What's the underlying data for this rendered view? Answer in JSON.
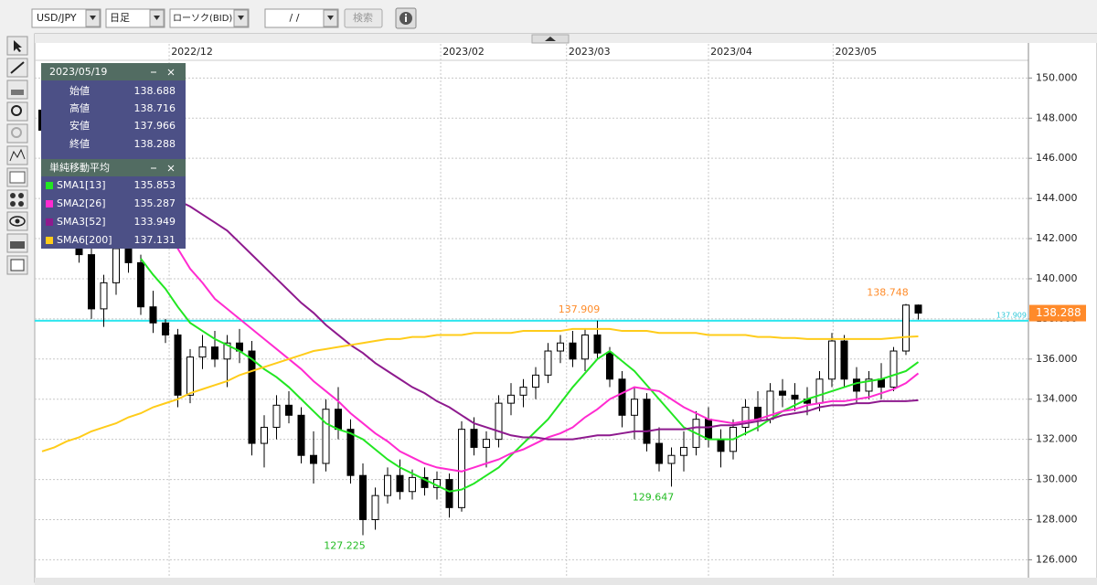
{
  "toolbar": {
    "symbol": "USD/JPY",
    "period": "日足",
    "chart_type": "ローソク(BID)",
    "date": "/ /",
    "search": "検索"
  },
  "info_panel": {
    "date": "2023/05/19",
    "ohlc_labels": [
      "始値",
      "高値",
      "安値",
      "終値"
    ],
    "sma_title": "単純移動平均"
  },
  "chart_data": {
    "type": "candlestick",
    "open": [
      148.4,
      147.4,
      146.0,
      144.5,
      141.2,
      138.5,
      139.8,
      141.5,
      140.8,
      138.6,
      137.8,
      137.2,
      134.2,
      136.1,
      136.6,
      136.0,
      136.8,
      136.4,
      131.8,
      132.6,
      133.7,
      133.2,
      131.2,
      130.8,
      133.5,
      132.5,
      130.2,
      128.0,
      129.2,
      130.2,
      129.4,
      130.1,
      129.6,
      130.0,
      128.6,
      132.5,
      131.6,
      132.0,
      133.8,
      134.2,
      134.6,
      135.2,
      136.4,
      136.8,
      136.0,
      137.2,
      136.3,
      135.0,
      133.2,
      134.0,
      131.8,
      130.8,
      131.2,
      131.6,
      133.0,
      132.0,
      131.4,
      132.6,
      133.6,
      133.0,
      134.4,
      134.2,
      134.0,
      133.8,
      135.0,
      136.9,
      135.0,
      134.4,
      135.0,
      134.6,
      136.4,
      138.688
    ],
    "high": [
      148.7,
      147.8,
      146.5,
      145.0,
      141.8,
      140.2,
      142.0,
      142.2,
      141.2,
      139.4,
      138.0,
      137.5,
      136.5,
      137.2,
      137.4,
      137.2,
      137.5,
      136.9,
      133.2,
      134.2,
      134.4,
      133.6,
      132.4,
      134.0,
      134.6,
      133.0,
      130.8,
      129.6,
      130.6,
      131.0,
      130.5,
      130.6,
      130.4,
      130.3,
      132.9,
      133.1,
      132.4,
      134.2,
      134.8,
      135.0,
      135.6,
      136.8,
      137.2,
      137.4,
      137.5,
      137.909,
      136.6,
      135.4,
      134.6,
      134.3,
      132.6,
      131.6,
      132.4,
      133.4,
      133.6,
      132.5,
      133.0,
      134.0,
      134.4,
      134.8,
      135.0,
      134.8,
      134.6,
      135.4,
      137.3,
      137.2,
      135.6,
      135.4,
      135.8,
      136.6,
      138.748,
      138.716
    ],
    "low": [
      147.0,
      145.5,
      144.0,
      140.8,
      138.0,
      137.6,
      139.2,
      140.3,
      138.2,
      137.3,
      136.8,
      133.6,
      133.8,
      135.5,
      135.6,
      134.6,
      135.8,
      131.2,
      130.6,
      132.0,
      132.8,
      130.8,
      129.8,
      130.4,
      132.0,
      129.8,
      127.225,
      127.5,
      128.8,
      129.0,
      129.0,
      129.2,
      129.0,
      128.1,
      128.4,
      131.2,
      130.6,
      131.6,
      133.2,
      133.6,
      134.0,
      134.8,
      135.8,
      135.6,
      135.4,
      136.0,
      134.6,
      132.6,
      132.0,
      131.4,
      130.4,
      129.647,
      130.4,
      131.2,
      131.6,
      130.6,
      131.0,
      132.2,
      132.4,
      132.8,
      133.6,
      133.4,
      133.2,
      133.4,
      134.6,
      134.6,
      133.8,
      134.0,
      134.0,
      134.4,
      136.2,
      137.966
    ],
    "close": [
      147.4,
      146.0,
      144.5,
      141.2,
      138.5,
      139.8,
      141.5,
      140.8,
      138.6,
      137.8,
      137.2,
      134.2,
      136.1,
      136.6,
      136.0,
      136.8,
      136.4,
      131.8,
      132.6,
      133.7,
      133.2,
      131.2,
      130.8,
      133.5,
      132.5,
      130.2,
      128.0,
      129.2,
      130.2,
      129.4,
      130.1,
      129.6,
      130.0,
      128.6,
      132.5,
      131.6,
      132.0,
      133.8,
      134.2,
      134.6,
      135.2,
      136.4,
      136.8,
      136.0,
      137.2,
      136.3,
      135.0,
      133.2,
      134.0,
      131.8,
      130.8,
      131.2,
      131.6,
      133.0,
      132.0,
      131.4,
      132.6,
      133.6,
      133.0,
      134.4,
      134.2,
      134.0,
      133.8,
      135.0,
      136.9,
      135.0,
      134.4,
      135.0,
      134.6,
      136.4,
      138.688,
      138.288
    ],
    "series": [
      {
        "name": "SMA1[13]",
        "color": "#22e622",
        "values": [
          null,
          null,
          null,
          null,
          null,
          null,
          null,
          null,
          141.0,
          140.2,
          139.5,
          138.6,
          137.8,
          137.4,
          137.0,
          136.7,
          136.4,
          136.0,
          135.5,
          135.1,
          134.6,
          134.0,
          133.4,
          132.8,
          132.5,
          132.3,
          132.0,
          131.5,
          131.0,
          130.6,
          130.3,
          130.0,
          129.7,
          129.4,
          129.5,
          129.8,
          130.2,
          130.6,
          131.2,
          131.8,
          132.4,
          133.0,
          133.8,
          134.6,
          135.3,
          136.0,
          136.4,
          135.9,
          135.4,
          134.7,
          134.0,
          133.3,
          132.6,
          132.3,
          132.0,
          132.0,
          132.0,
          132.3,
          132.6,
          133.0,
          133.4,
          133.7,
          134.0,
          134.2,
          134.4,
          134.6,
          134.8,
          134.9,
          135.0,
          135.2,
          135.4,
          135.853
        ]
      },
      {
        "name": "SMA2[26]",
        "color": "#ff2bd0",
        "values": [
          null,
          null,
          null,
          null,
          null,
          null,
          null,
          null,
          null,
          null,
          142.5,
          141.5,
          140.5,
          139.8,
          139.0,
          138.5,
          138.0,
          137.5,
          137.0,
          136.5,
          136.0,
          135.5,
          134.9,
          134.4,
          133.9,
          133.3,
          132.8,
          132.3,
          131.9,
          131.4,
          131.1,
          130.8,
          130.6,
          130.5,
          130.4,
          130.6,
          130.8,
          131.0,
          131.3,
          131.5,
          131.8,
          132.1,
          132.3,
          132.6,
          133.1,
          133.5,
          134.0,
          134.3,
          134.6,
          134.5,
          134.4,
          134.0,
          133.6,
          133.3,
          133.0,
          132.9,
          132.8,
          132.9,
          133.0,
          133.2,
          133.4,
          133.5,
          133.7,
          133.8,
          133.9,
          133.9,
          134.0,
          134.1,
          134.3,
          134.5,
          134.8,
          135.287
        ]
      },
      {
        "name": "SMA3[52]",
        "color": "#8e1a8e",
        "values": [
          146.9,
          146.6,
          146.3,
          145.9,
          145.6,
          145.4,
          145.1,
          144.9,
          144.6,
          144.4,
          144.1,
          143.9,
          143.6,
          143.2,
          142.8,
          142.4,
          141.8,
          141.2,
          140.6,
          140.0,
          139.4,
          138.8,
          138.3,
          137.7,
          137.2,
          136.7,
          136.3,
          135.8,
          135.4,
          135.0,
          134.6,
          134.3,
          133.9,
          133.6,
          133.2,
          132.8,
          132.6,
          132.4,
          132.2,
          132.1,
          132.1,
          132.0,
          132.0,
          132.0,
          132.1,
          132.2,
          132.2,
          132.3,
          132.4,
          132.4,
          132.5,
          132.5,
          132.5,
          132.6,
          132.6,
          132.7,
          132.7,
          132.8,
          132.9,
          133.0,
          133.2,
          133.3,
          133.4,
          133.6,
          133.7,
          133.7,
          133.8,
          133.8,
          133.9,
          133.9,
          133.9,
          133.949
        ]
      },
      {
        "name": "SMA6[200]",
        "color": "#ffcc1a",
        "values": [
          131.4,
          131.6,
          131.9,
          132.1,
          132.4,
          132.6,
          132.8,
          133.1,
          133.3,
          133.6,
          133.8,
          134.0,
          134.3,
          134.5,
          134.7,
          134.9,
          135.2,
          135.4,
          135.6,
          135.8,
          136.0,
          136.2,
          136.4,
          136.5,
          136.6,
          136.7,
          136.8,
          136.9,
          137.0,
          137.0,
          137.1,
          137.1,
          137.2,
          137.2,
          137.2,
          137.3,
          137.3,
          137.3,
          137.3,
          137.4,
          137.4,
          137.4,
          137.4,
          137.5,
          137.5,
          137.5,
          137.5,
          137.4,
          137.4,
          137.4,
          137.3,
          137.3,
          137.3,
          137.3,
          137.2,
          137.2,
          137.2,
          137.2,
          137.1,
          137.1,
          137.05,
          137.05,
          137.0,
          137.0,
          137.0,
          137.0,
          137.0,
          137.0,
          137.0,
          137.05,
          137.1,
          137.131
        ]
      }
    ],
    "ylim": [
      125.2,
      151.7
    ],
    "yticks": [
      {
        "value": 126,
        "label": "126.000"
      },
      {
        "value": 128,
        "label": "128.000"
      },
      {
        "value": 130,
        "label": "130.000"
      },
      {
        "value": 132,
        "label": "132.000"
      },
      {
        "value": 134,
        "label": "134.000"
      },
      {
        "value": 136,
        "label": "136.000"
      },
      {
        "value": 138,
        "label": "138.000"
      },
      {
        "value": 140,
        "label": "140.000"
      },
      {
        "value": 142,
        "label": "142.000"
      },
      {
        "value": 144,
        "label": "144.000"
      },
      {
        "value": 146,
        "label": "146.000"
      },
      {
        "value": 148,
        "label": "148.000"
      },
      {
        "value": 150,
        "label": "150.000"
      }
    ],
    "xticks": [
      {
        "value": 10.3,
        "label": "2022/12"
      },
      {
        "value": 32.3,
        "label": "2023/02"
      },
      {
        "value": 42.5,
        "label": "2023/03"
      },
      {
        "value": 54,
        "label": "2023/04"
      },
      {
        "value": 64.1,
        "label": "2023/05"
      }
    ],
    "grid": true
  }
}
